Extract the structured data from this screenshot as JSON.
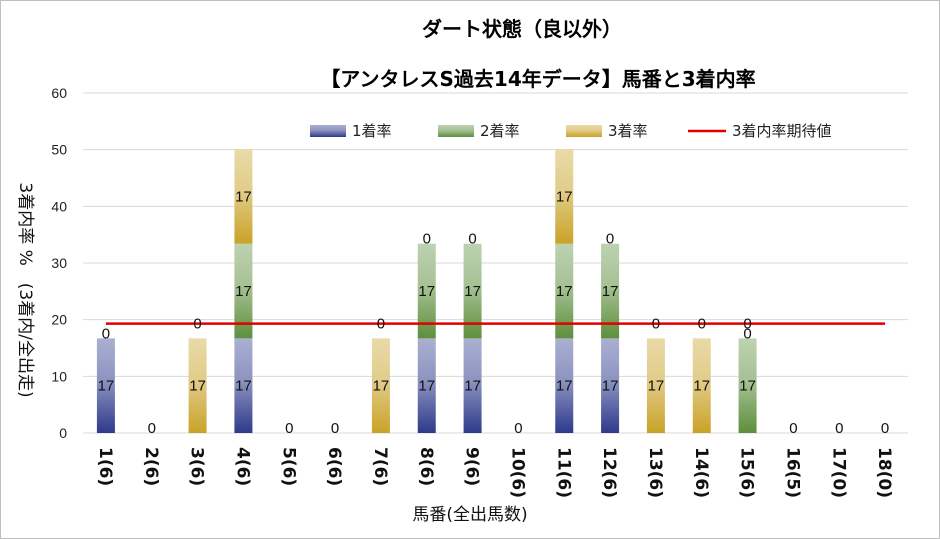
{
  "chart_data": {
    "type": "bar",
    "stacked": true,
    "title_lines": [
      "ダート状態（良以外）",
      "【アンタレスS過去14年データ】馬番と3着内率"
    ],
    "xlabel": "馬番(全出馬数)",
    "ylabel": "3着内率 %　(3着内/全出走)",
    "ylim": [
      0,
      60
    ],
    "yticks": [
      0,
      10,
      20,
      30,
      40,
      50,
      60
    ],
    "categories": [
      "1(6)",
      "2(6)",
      "3(6)",
      "4(6)",
      "5(6)",
      "6(6)",
      "7(6)",
      "8(6)",
      "9(6)",
      "10(6)",
      "11(6)",
      "12(6)",
      "13(6)",
      "14(6)",
      "15(6)",
      "16(5)",
      "17(0)",
      "18(0)"
    ],
    "series": [
      {
        "name": "1着率",
        "color": "#2e3a8c",
        "values": [
          16.7,
          0,
          0,
          16.7,
          0,
          0,
          0,
          16.7,
          16.7,
          0,
          16.7,
          16.7,
          0,
          0,
          0,
          0,
          0,
          0
        ],
        "labels": [
          "17",
          "0",
          "",
          "17",
          "0",
          "0",
          "",
          "17",
          "17",
          "0",
          "17",
          "17",
          "",
          "",
          "",
          "0",
          "0",
          "0"
        ]
      },
      {
        "name": "2着率",
        "color": "#5d8f3c",
        "values": [
          0,
          0,
          0,
          16.7,
          0,
          0,
          0,
          16.7,
          16.7,
          0,
          16.7,
          16.7,
          0,
          0,
          16.7,
          0,
          0,
          0
        ],
        "labels": [
          "0",
          "",
          "",
          "17",
          "",
          "",
          "",
          "17",
          "17",
          "",
          "17",
          "17",
          "",
          "",
          "17",
          "",
          "",
          ""
        ]
      },
      {
        "name": "3着率",
        "color": "#c9a227",
        "values": [
          0,
          0,
          16.7,
          16.7,
          0,
          0,
          16.7,
          0,
          0,
          0,
          16.7,
          0,
          16.7,
          16.7,
          0,
          0,
          0,
          0
        ],
        "labels": [
          "",
          "",
          "17",
          "17",
          "",
          "",
          "17",
          "0",
          "0",
          "",
          "17",
          "0",
          "17",
          "17",
          "0",
          "",
          "",
          ""
        ]
      }
    ],
    "top_labels": [
      "",
      "",
      "0",
      "",
      "",
      "",
      "0",
      "",
      "",
      "",
      "",
      "",
      "0",
      "0",
      "0",
      "",
      "",
      ""
    ],
    "expected_line": {
      "name": "3着内率期待値",
      "value": 19.3,
      "color": "#e00000"
    },
    "legend": "top-right"
  }
}
